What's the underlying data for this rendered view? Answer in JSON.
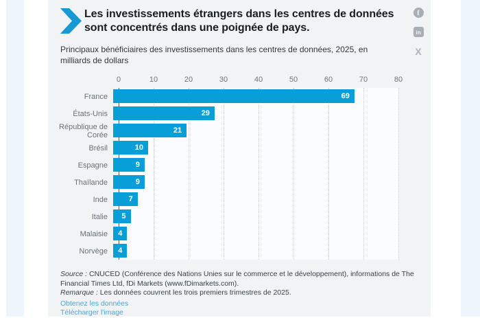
{
  "page": {
    "title": "Les investissements étrangers dans les centres de données sont concentrés dans une poignée de pays.",
    "subtitle": "Principaux bénéficiaires des investissements dans les centres de données, 2025, en milliards de dollars"
  },
  "social": {
    "facebook_glyph": "f",
    "linkedin_glyph": "in",
    "x_glyph": "X"
  },
  "chart_data": {
    "type": "bar",
    "orientation": "horizontal",
    "title": "Principaux bénéficiaires des investissements dans les centres de données, 2025, en milliards de dollars",
    "categories": [
      "France",
      "États-Unis",
      "République de Corée",
      "Brésil",
      "Espagne",
      "Thaïlande",
      "Inde",
      "Italie",
      "Malaisie",
      "Norvège"
    ],
    "values": [
      69,
      29,
      21,
      10,
      9,
      9,
      7,
      5,
      4,
      4
    ],
    "xlim": [
      0,
      80
    ],
    "xticks": [
      0,
      10,
      20,
      30,
      40,
      50,
      60,
      70,
      80
    ],
    "xlabel": "",
    "ylabel": "",
    "grid": "vertical-dotted",
    "legend": "none",
    "bar_color": "#089fd9",
    "value_label_color": "#ffffff"
  },
  "footer": {
    "source_label": "Source :",
    "source_text": " CNUCED (Conférence des Nations Unies sur le commerce et le développement), informations de The Financial Times Ltd, fDi Markets (www.fDimarkets.com).",
    "note_label": "Remarque :",
    "note_text": " Les données couvrent les trois premiers trimestres de 2025.",
    "links": [
      {
        "label": "Obtenez les données"
      },
      {
        "label": "Télécharger l'image"
      }
    ]
  },
  "colors": {
    "bar": "#089fd9",
    "logo": "#1899d3",
    "link": "#4aa6d9",
    "icon_gray": "#a9aeb4",
    "card_bg": "#f1f3f5"
  }
}
